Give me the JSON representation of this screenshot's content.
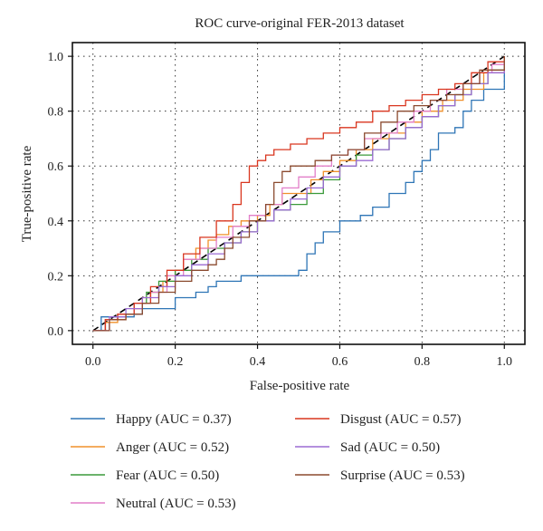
{
  "chart_data": {
    "type": "line",
    "title": "ROC curve-original FER-2013 dataset",
    "xlabel": "False-positive rate",
    "ylabel": "True-positive rate",
    "xlim": [
      -0.05,
      1.05
    ],
    "ylim": [
      -0.05,
      1.05
    ],
    "xticks": [
      0.0,
      0.2,
      0.4,
      0.6,
      0.8,
      1.0
    ],
    "yticks": [
      0.0,
      0.2,
      0.4,
      0.6,
      0.8,
      1.0
    ],
    "xtick_labels": [
      "0.0",
      "0.2",
      "0.4",
      "0.6",
      "0.8",
      "1.0"
    ],
    "ytick_labels": [
      "0.0",
      "0.2",
      "0.4",
      "0.6",
      "0.8",
      "1.0"
    ],
    "grid": true,
    "grid_style": "dotted",
    "legend_placement": "below",
    "diagonal": {
      "x": [
        0,
        1
      ],
      "y": [
        0,
        1
      ],
      "style": "dashed",
      "color": "#000000"
    },
    "series": [
      {
        "name": "Happy (AUC = 0.37)",
        "color": "#2e75b6",
        "x": [
          0.0,
          0.02,
          0.05,
          0.08,
          0.1,
          0.12,
          0.15,
          0.2,
          0.25,
          0.28,
          0.3,
          0.33,
          0.36,
          0.4,
          0.45,
          0.5,
          0.52,
          0.54,
          0.56,
          0.6,
          0.62,
          0.65,
          0.68,
          0.72,
          0.76,
          0.78,
          0.8,
          0.82,
          0.84,
          0.86,
          0.88,
          0.9,
          0.92,
          0.95,
          1.0
        ],
        "y": [
          0.0,
          0.05,
          0.05,
          0.05,
          0.06,
          0.08,
          0.08,
          0.12,
          0.14,
          0.16,
          0.18,
          0.18,
          0.2,
          0.2,
          0.2,
          0.22,
          0.28,
          0.32,
          0.36,
          0.4,
          0.4,
          0.42,
          0.45,
          0.5,
          0.54,
          0.58,
          0.62,
          0.66,
          0.72,
          0.72,
          0.74,
          0.8,
          0.84,
          0.88,
          0.98
        ]
      },
      {
        "name": "Anger (AUC = 0.52)",
        "color": "#f0902a",
        "x": [
          0.0,
          0.03,
          0.06,
          0.08,
          0.1,
          0.12,
          0.14,
          0.17,
          0.2,
          0.22,
          0.25,
          0.28,
          0.3,
          0.33,
          0.36,
          0.4,
          0.43,
          0.46,
          0.5,
          0.53,
          0.56,
          0.6,
          0.64,
          0.68,
          0.72,
          0.76,
          0.8,
          0.85,
          0.9,
          0.95,
          1.0
        ],
        "y": [
          0.0,
          0.03,
          0.04,
          0.06,
          0.08,
          0.12,
          0.14,
          0.18,
          0.22,
          0.26,
          0.3,
          0.33,
          0.35,
          0.38,
          0.4,
          0.42,
          0.46,
          0.5,
          0.5,
          0.55,
          0.58,
          0.62,
          0.66,
          0.7,
          0.72,
          0.76,
          0.8,
          0.84,
          0.88,
          0.94,
          1.0
        ]
      },
      {
        "name": "Fear (AUC = 0.50)",
        "color": "#3a9a3a",
        "x": [
          0.0,
          0.03,
          0.06,
          0.1,
          0.13,
          0.16,
          0.2,
          0.24,
          0.28,
          0.32,
          0.36,
          0.4,
          0.44,
          0.48,
          0.52,
          0.56,
          0.6,
          0.64,
          0.68,
          0.72,
          0.76,
          0.8,
          0.84,
          0.88,
          0.92,
          0.96,
          1.0
        ],
        "y": [
          0.0,
          0.04,
          0.06,
          0.1,
          0.14,
          0.18,
          0.22,
          0.26,
          0.3,
          0.32,
          0.36,
          0.4,
          0.44,
          0.46,
          0.5,
          0.55,
          0.6,
          0.64,
          0.66,
          0.7,
          0.74,
          0.78,
          0.82,
          0.86,
          0.9,
          0.95,
          1.0
        ]
      },
      {
        "name": "Neutral (AUC = 0.53)",
        "color": "#e27fc9",
        "x": [
          0.0,
          0.03,
          0.06,
          0.1,
          0.14,
          0.18,
          0.22,
          0.26,
          0.3,
          0.34,
          0.38,
          0.42,
          0.46,
          0.5,
          0.54,
          0.58,
          0.62,
          0.66,
          0.7,
          0.74,
          0.78,
          0.82,
          0.86,
          0.9,
          0.94,
          0.97,
          1.0
        ],
        "y": [
          0.0,
          0.04,
          0.06,
          0.1,
          0.14,
          0.2,
          0.26,
          0.3,
          0.34,
          0.38,
          0.42,
          0.46,
          0.52,
          0.56,
          0.6,
          0.64,
          0.66,
          0.7,
          0.72,
          0.76,
          0.8,
          0.84,
          0.88,
          0.9,
          0.94,
          0.97,
          1.0
        ]
      },
      {
        "name": "Disgust (AUC = 0.57)",
        "color": "#d9361f",
        "x": [
          0.0,
          0.03,
          0.06,
          0.1,
          0.14,
          0.18,
          0.22,
          0.26,
          0.3,
          0.34,
          0.36,
          0.38,
          0.4,
          0.42,
          0.44,
          0.48,
          0.52,
          0.56,
          0.6,
          0.64,
          0.68,
          0.72,
          0.76,
          0.8,
          0.84,
          0.88,
          0.92,
          0.96,
          1.0
        ],
        "y": [
          0.0,
          0.04,
          0.06,
          0.1,
          0.16,
          0.22,
          0.28,
          0.34,
          0.4,
          0.46,
          0.54,
          0.6,
          0.62,
          0.64,
          0.66,
          0.68,
          0.7,
          0.72,
          0.74,
          0.76,
          0.8,
          0.82,
          0.84,
          0.86,
          0.88,
          0.9,
          0.94,
          0.98,
          1.0
        ]
      },
      {
        "name": "Sad (AUC = 0.50)",
        "color": "#9b6bd3",
        "x": [
          0.0,
          0.04,
          0.08,
          0.12,
          0.16,
          0.2,
          0.24,
          0.28,
          0.32,
          0.36,
          0.4,
          0.44,
          0.48,
          0.52,
          0.56,
          0.6,
          0.64,
          0.68,
          0.72,
          0.76,
          0.8,
          0.84,
          0.88,
          0.92,
          0.96,
          1.0
        ],
        "y": [
          0.0,
          0.05,
          0.08,
          0.12,
          0.16,
          0.2,
          0.24,
          0.28,
          0.32,
          0.36,
          0.4,
          0.44,
          0.48,
          0.52,
          0.56,
          0.6,
          0.62,
          0.66,
          0.7,
          0.74,
          0.78,
          0.82,
          0.86,
          0.9,
          0.94,
          0.98
        ]
      },
      {
        "name": "Surprise (AUC = 0.53)",
        "color": "#8b4a2f",
        "x": [
          0.0,
          0.04,
          0.08,
          0.12,
          0.16,
          0.2,
          0.24,
          0.28,
          0.3,
          0.32,
          0.34,
          0.38,
          0.42,
          0.44,
          0.46,
          0.48,
          0.5,
          0.54,
          0.58,
          0.62,
          0.66,
          0.7,
          0.74,
          0.78,
          0.82,
          0.86,
          0.9,
          0.94,
          1.0
        ],
        "y": [
          0.0,
          0.04,
          0.06,
          0.1,
          0.14,
          0.18,
          0.22,
          0.24,
          0.26,
          0.3,
          0.34,
          0.4,
          0.46,
          0.54,
          0.58,
          0.6,
          0.6,
          0.62,
          0.64,
          0.66,
          0.72,
          0.76,
          0.8,
          0.82,
          0.84,
          0.86,
          0.9,
          0.95,
          1.0
        ]
      }
    ]
  }
}
